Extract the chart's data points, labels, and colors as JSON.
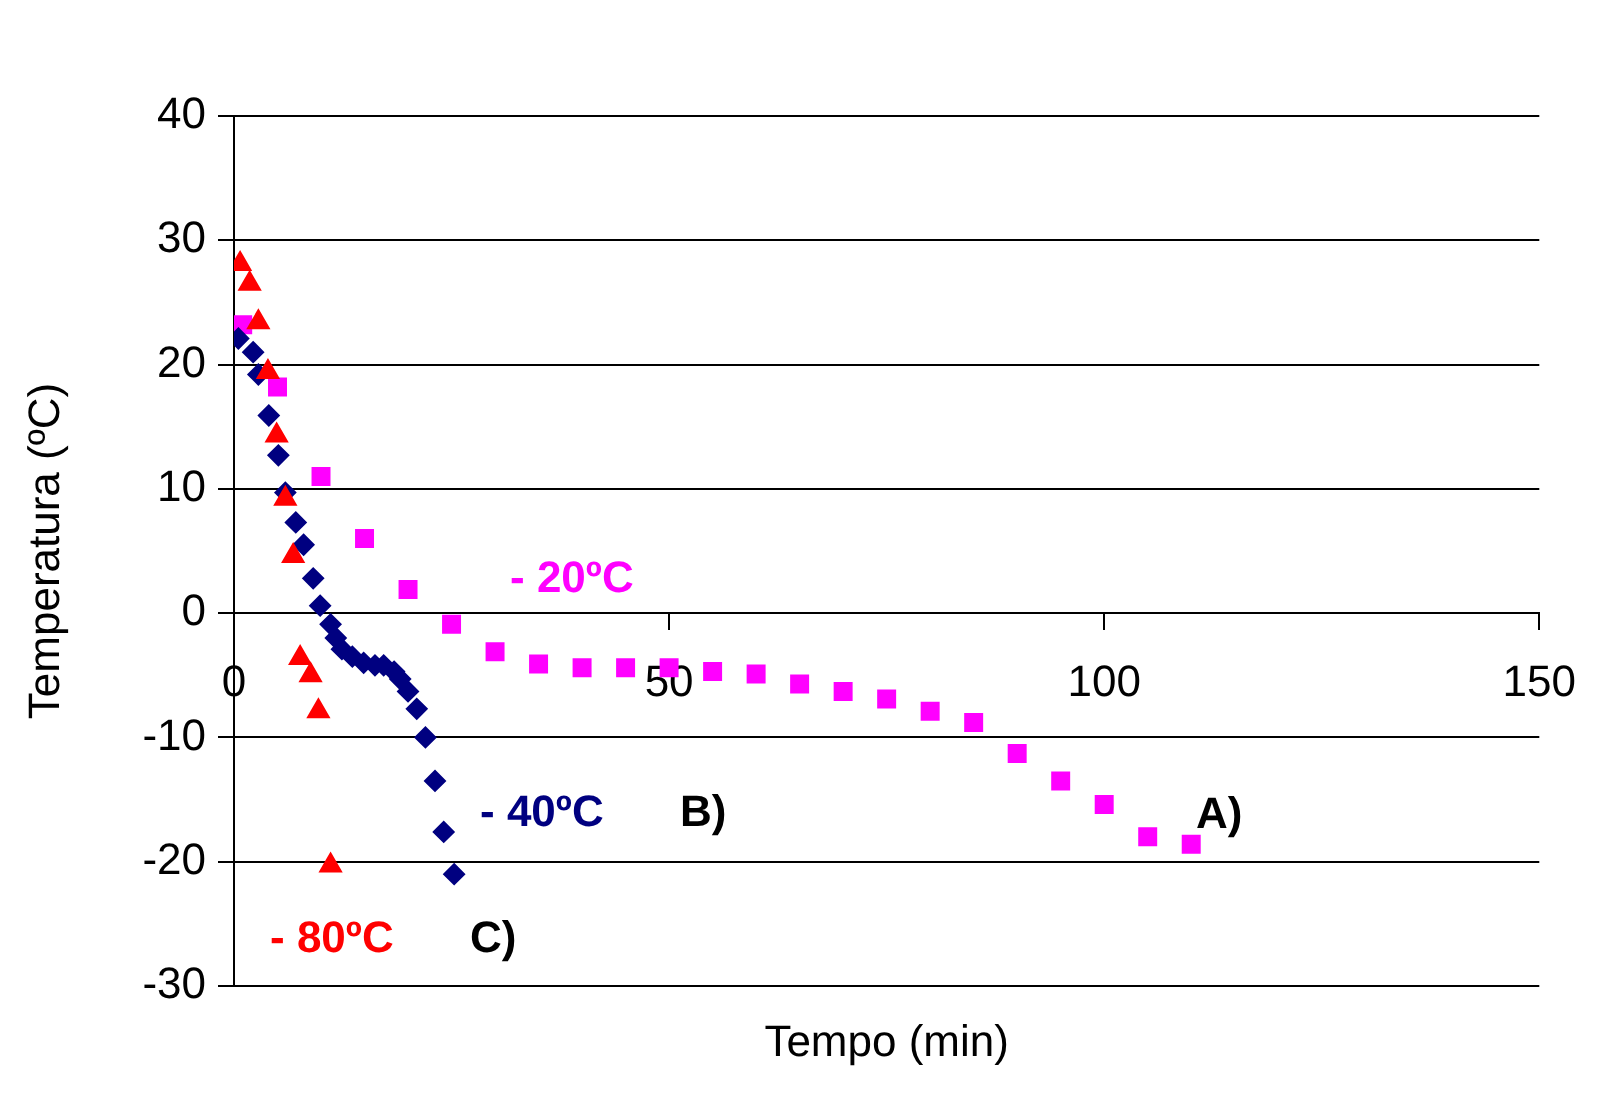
{
  "chart_data": {
    "type": "scatter",
    "xlabel": "Tempo (min)",
    "ylabel": "Temperatura (ºC)",
    "xlim": [
      0,
      150
    ],
    "xticks": [
      0,
      50,
      100,
      150
    ],
    "ylim": [
      -30,
      40
    ],
    "yticks": [
      -30,
      -20,
      -10,
      0,
      10,
      20,
      30,
      40
    ],
    "grid": "y",
    "legend": false,
    "series": [
      {
        "name": "- 20ºC",
        "color": "#ff00ff",
        "marker": "square",
        "x": [
          1,
          5,
          10,
          15,
          20,
          25,
          30,
          35,
          40,
          45,
          50,
          55,
          60,
          65,
          70,
          75,
          80,
          85,
          90,
          95,
          100,
          105,
          110
        ],
        "values": [
          23.2,
          18.2,
          11,
          6,
          1.9,
          -0.9,
          -3.1,
          -4.1,
          -4.4,
          -4.4,
          -4.4,
          -4.7,
          -4.9,
          -5.7,
          -6.3,
          -6.9,
          -7.9,
          -8.8,
          -11.3,
          -13.5,
          -15.4,
          -18,
          -18.6
        ]
      },
      {
        "name": "- 40ºC",
        "color": "#000080",
        "marker": "diamond",
        "x": [
          0.5,
          2.2,
          2.8,
          4,
          5.1,
          5.9,
          7.1,
          8,
          9.1,
          9.9,
          11.1,
          11.7,
          12.4,
          13.6,
          14.9,
          16.2,
          17.2,
          18.4,
          19.1,
          20,
          21,
          22,
          23.1,
          24.1,
          25.3
        ],
        "values": [
          22.1,
          21,
          19.2,
          15.9,
          12.7,
          9.7,
          7.3,
          5.5,
          2.8,
          0.6,
          -0.9,
          -2,
          -2.9,
          -3.5,
          -4,
          -4.2,
          -4.2,
          -4.7,
          -5.3,
          -6.3,
          -7.7,
          -10,
          -13.5,
          -17.6,
          -21
        ]
      },
      {
        "name": "- 80ºC",
        "color": "#ff0000",
        "marker": "triangle",
        "x": [
          0.7,
          1.8,
          2.8,
          3.9,
          4.9,
          5.9,
          6.8,
          7.6,
          8.8,
          9.7,
          11.1
        ],
        "values": [
          28.1,
          26.5,
          23.4,
          19.4,
          14.3,
          9.2,
          4.6,
          -3.6,
          -5,
          -7.9,
          -20.3
        ]
      }
    ],
    "annotations": [
      "A)",
      "B)",
      "C)"
    ]
  }
}
